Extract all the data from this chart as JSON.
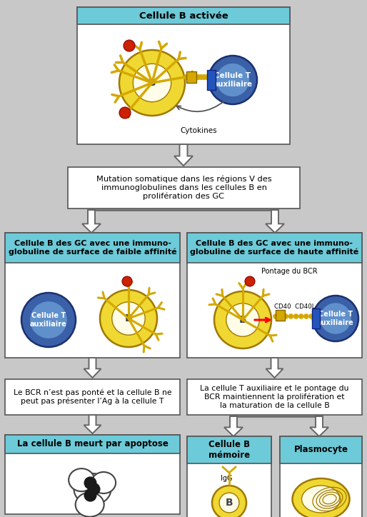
{
  "bg_color": "#c8c8c8",
  "cyan_header": "#6dcad8",
  "yellow_cell": "#f0d832",
  "yellow_inner": "#fffde8",
  "blue_cell": "#3a60a8",
  "blue_light": "#6090cc",
  "red_dot": "#cc2200",
  "border_dark": "#555555",
  "border_light": "#888888",
  "title_top": "Cellule B activée",
  "text_mutation": "Mutation somatique dans les régions V des\nimmunoglobulines dans les cellules B en\nprolifération des GC",
  "title_left": "Cellule B des GC avec une immuno-\nglobuline de surface de faible affinité",
  "title_right": "Cellule B des GC avec une immuno-\nglobuline de surface de haute affinité",
  "text_left_desc": "Le BCR n’est pas ponté et la cellule B ne\npeut pas présenter l’Ag à la cellule T",
  "text_right_desc": "La cellule T auxiliaire et le pontage du\nBCR maintiennent la prolifération et\nla maturation de la cellule B",
  "text_apoptose": "La cellule B meurt par apoptose",
  "text_memoire": "Cellule B\nmémoire",
  "text_plasmocyte": "Plasmocyte",
  "text_cytokines": "Cytokines",
  "text_pontage": "Pontage du BCR",
  "text_cd40": "CD40  CD40L",
  "text_igg": "IgG",
  "abcolor": "#d4a800"
}
